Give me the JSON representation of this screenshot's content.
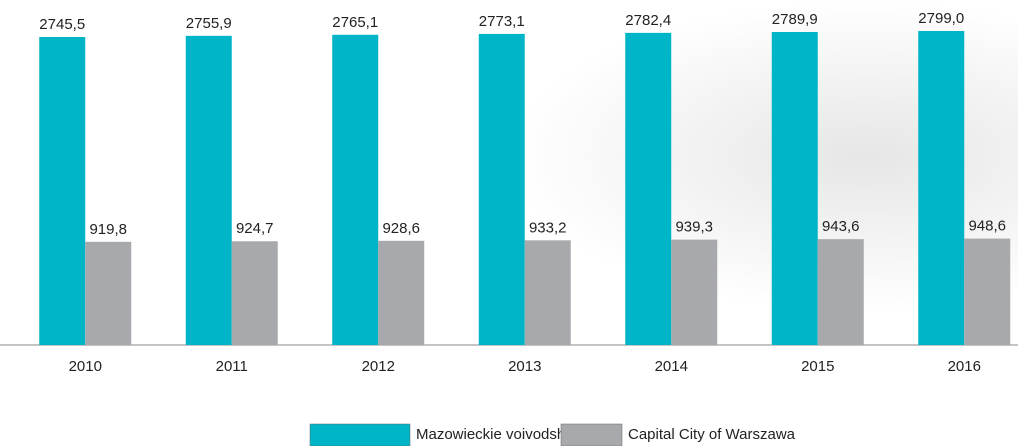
{
  "chart_data": {
    "type": "bar",
    "categories": [
      "2010",
      "2011",
      "2012",
      "2013",
      "2014",
      "2015",
      "2016"
    ],
    "series": [
      {
        "name": "Mazowieckie voivodship",
        "color": "#00b5c8",
        "values": [
          2745.5,
          2755.9,
          2765.1,
          2773.1,
          2782.4,
          2789.9,
          2799.0
        ],
        "value_labels": [
          "2745,5",
          "2755,9",
          "2765,1",
          "2773,1",
          "2782,4",
          "2789,9",
          "2799,0"
        ]
      },
      {
        "name": "Capital City of Warszawa",
        "color": "#a7a9ac",
        "values": [
          919.8,
          924.7,
          928.6,
          933.2,
          939.3,
          943.6,
          948.6
        ],
        "value_labels": [
          "919,8",
          "924,7",
          "928,6",
          "933,2",
          "939,3",
          "943,6",
          "948,6"
        ]
      }
    ],
    "legend": "bottom"
  }
}
